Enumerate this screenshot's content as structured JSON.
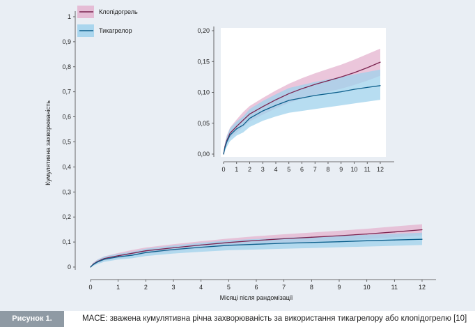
{
  "figure": {
    "label": "Рисунок 1.",
    "caption": "MACE: зважена кумулятивна річна захворюваність за використання тикагрелору або клопідогрелю [10]"
  },
  "colors": {
    "clopidogrel_line": "#7b2450",
    "clopidogrel_band": "#e4b3cf",
    "ticagrelor_line": "#0d5f8c",
    "ticagrelor_band": "#9fd1ec",
    "background": "#e9eef4",
    "caption_label_bg": "#8f9aa4"
  },
  "chart_data": [
    {
      "type": "line",
      "xlabel": "Місяці після рандомізації",
      "ylabel": "Кумулятивна захворюваність",
      "xlim": [
        0,
        12
      ],
      "ylim": [
        0,
        1
      ],
      "xticks": [
        "0",
        "1",
        "2",
        "3",
        "4",
        "5",
        "6",
        "7",
        "8",
        "9",
        "10",
        "11",
        "12"
      ],
      "yticks": [
        "0",
        "0,1",
        "0,2",
        "0,3",
        "0,4",
        "0,5",
        "0,6",
        "0,7",
        "0,8",
        "0,9",
        "1"
      ],
      "legend_position": "top-left",
      "x": [
        0,
        0.1,
        0.25,
        0.5,
        1,
        1.5,
        2,
        3,
        4,
        5,
        6,
        7,
        8,
        9,
        10,
        11,
        12
      ],
      "series": [
        {
          "name": "Клопідогрель",
          "values": [
            0.0,
            0.012,
            0.022,
            0.034,
            0.045,
            0.055,
            0.065,
            0.077,
            0.088,
            0.098,
            0.106,
            0.113,
            0.119,
            0.125,
            0.132,
            0.14,
            0.149
          ],
          "ci_lower": [
            0.0,
            0.008,
            0.016,
            0.026,
            0.035,
            0.044,
            0.053,
            0.064,
            0.074,
            0.083,
            0.09,
            0.096,
            0.101,
            0.106,
            0.112,
            0.119,
            0.127
          ],
          "ci_upper": [
            0.0,
            0.018,
            0.03,
            0.043,
            0.056,
            0.068,
            0.078,
            0.091,
            0.103,
            0.114,
            0.123,
            0.131,
            0.138,
            0.145,
            0.153,
            0.162,
            0.171
          ]
        },
        {
          "name": "Тикагрелор",
          "values": [
            0.0,
            0.01,
            0.02,
            0.031,
            0.041,
            0.047,
            0.058,
            0.07,
            0.079,
            0.087,
            0.091,
            0.095,
            0.098,
            0.101,
            0.105,
            0.108,
            0.111
          ],
          "ci_lower": [
            0.0,
            0.005,
            0.012,
            0.021,
            0.03,
            0.035,
            0.044,
            0.054,
            0.061,
            0.067,
            0.07,
            0.073,
            0.076,
            0.079,
            0.082,
            0.085,
            0.088
          ],
          "ci_upper": [
            0.0,
            0.016,
            0.029,
            0.042,
            0.053,
            0.061,
            0.073,
            0.086,
            0.097,
            0.107,
            0.112,
            0.117,
            0.121,
            0.125,
            0.129,
            0.133,
            0.137
          ]
        }
      ]
    },
    {
      "type": "line",
      "xlim": [
        0,
        12
      ],
      "ylim": [
        0,
        0.2
      ],
      "xticks": [
        "0",
        "1",
        "2",
        "3",
        "4",
        "5",
        "6",
        "7",
        "8",
        "9",
        "10",
        "11",
        "12"
      ],
      "yticks": [
        "0,00",
        "0,05",
        "0,10",
        "0,15",
        "0,20"
      ],
      "x": [
        0,
        0.1,
        0.25,
        0.5,
        1,
        1.5,
        2,
        3,
        4,
        5,
        6,
        7,
        8,
        9,
        10,
        11,
        12
      ],
      "series": [
        {
          "values": [
            0.0,
            0.012,
            0.022,
            0.034,
            0.045,
            0.055,
            0.065,
            0.077,
            0.088,
            0.098,
            0.106,
            0.113,
            0.119,
            0.125,
            0.132,
            0.14,
            0.149
          ],
          "ci_lower": [
            0.0,
            0.008,
            0.016,
            0.026,
            0.035,
            0.044,
            0.053,
            0.064,
            0.074,
            0.083,
            0.09,
            0.096,
            0.101,
            0.106,
            0.112,
            0.119,
            0.127
          ],
          "ci_upper": [
            0.0,
            0.018,
            0.03,
            0.043,
            0.056,
            0.068,
            0.078,
            0.091,
            0.103,
            0.114,
            0.123,
            0.131,
            0.138,
            0.145,
            0.153,
            0.162,
            0.171
          ]
        },
        {
          "values": [
            0.0,
            0.01,
            0.02,
            0.031,
            0.041,
            0.047,
            0.058,
            0.07,
            0.079,
            0.087,
            0.091,
            0.095,
            0.098,
            0.101,
            0.105,
            0.108,
            0.111
          ],
          "ci_lower": [
            0.0,
            0.005,
            0.012,
            0.021,
            0.03,
            0.035,
            0.044,
            0.054,
            0.061,
            0.067,
            0.07,
            0.073,
            0.076,
            0.079,
            0.082,
            0.085,
            0.088
          ],
          "ci_upper": [
            0.0,
            0.016,
            0.029,
            0.042,
            0.053,
            0.061,
            0.073,
            0.086,
            0.097,
            0.107,
            0.112,
            0.117,
            0.121,
            0.125,
            0.129,
            0.133,
            0.137
          ]
        }
      ]
    }
  ]
}
